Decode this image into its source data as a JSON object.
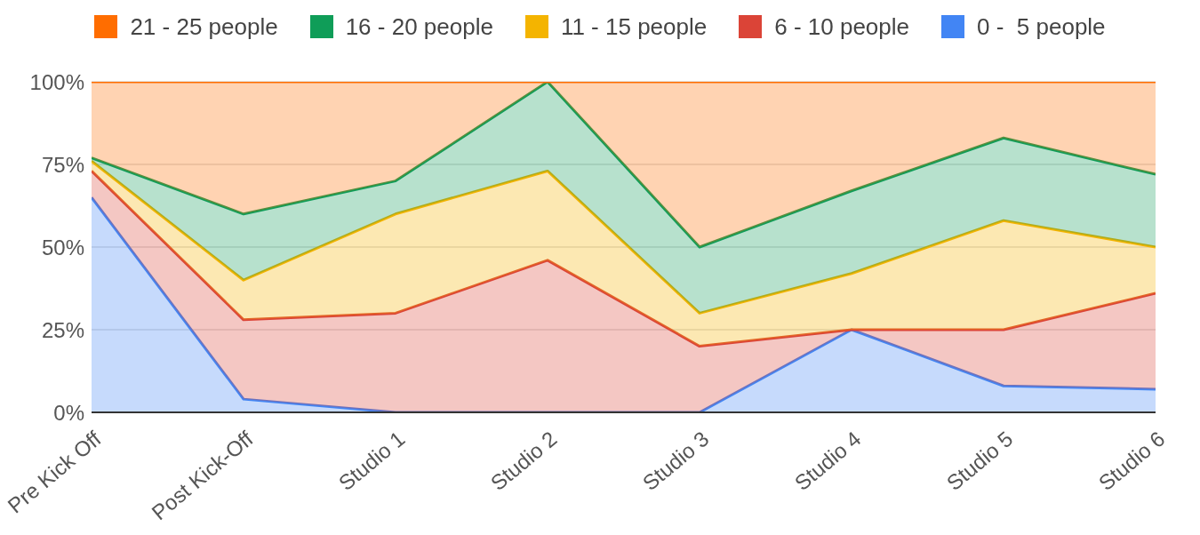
{
  "chart_data": {
    "type": "area",
    "stacked": true,
    "categories": [
      "Pre Kick Off",
      "Post Kick-Off",
      "Studio 1",
      "Studio 2",
      "Studio 3",
      "Studio 4",
      "Studio 5",
      "Studio 6"
    ],
    "series": [
      {
        "name": "0 -  5 people",
        "color": "#4285f4",
        "values": [
          65,
          4,
          0,
          0,
          0,
          25,
          8,
          7
        ]
      },
      {
        "name": "6 - 10 people",
        "color": "#db4437",
        "values": [
          8,
          24,
          30,
          46,
          20,
          0,
          17,
          29
        ]
      },
      {
        "name": "11 - 15 people",
        "color": "#f4b400",
        "values": [
          3,
          12,
          30,
          27,
          10,
          17,
          33,
          14
        ]
      },
      {
        "name": "16 - 20 people",
        "color": "#0f9d58",
        "values": [
          1,
          20,
          10,
          27,
          20,
          25,
          25,
          22
        ]
      },
      {
        "name": "21 - 25 people",
        "color": "#ff6d00",
        "values": [
          23,
          40,
          30,
          0,
          50,
          33,
          17,
          28
        ]
      }
    ],
    "ylim": [
      0,
      100
    ],
    "yticks": [
      {
        "value": 0,
        "label": "0%"
      },
      {
        "value": 25,
        "label": "25%"
      },
      {
        "value": 50,
        "label": "50%"
      },
      {
        "value": 75,
        "label": "75%"
      },
      {
        "value": 100,
        "label": "100%"
      }
    ],
    "grid": "y",
    "legend": "top"
  }
}
